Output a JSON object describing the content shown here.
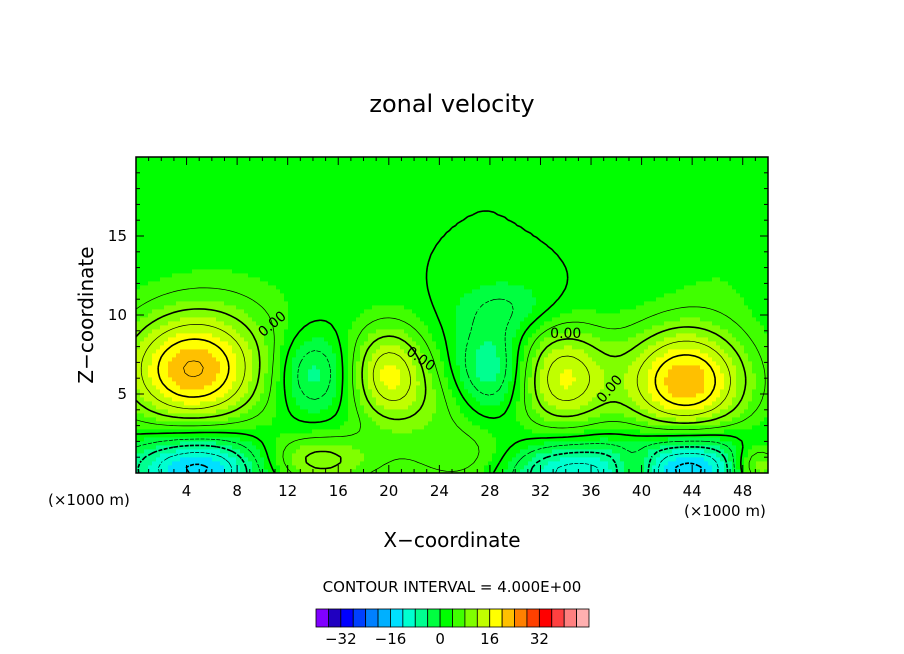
{
  "chart_data": {
    "type": "heatmap",
    "title": "zonal velocity",
    "xlabel": "X−coordinate",
    "ylabel": "Z−coordinate",
    "x_unit": "(×1000 m)",
    "x_unit_right": "(×1000 m)",
    "xlim": [
      0,
      50
    ],
    "ylim": [
      0,
      20
    ],
    "x_ticks": [
      4,
      8,
      12,
      16,
      20,
      24,
      28,
      32,
      36,
      40,
      44,
      48
    ],
    "y_ticks": [
      5,
      10,
      15
    ],
    "contour_interval_text": "CONTOUR INTERVAL = 4.000E+00",
    "contour_labels": [
      {
        "text": "0.00",
        "x": 10.8,
        "z": 9.4,
        "rot": -40
      },
      {
        "text": "0.00",
        "x": 22.5,
        "z": 7.2,
        "rot": 35
      },
      {
        "text": "0.00",
        "x": 34.0,
        "z": 8.8,
        "rot": 0
      },
      {
        "text": "0.00",
        "x": 37.5,
        "z": 5.3,
        "rot": -50
      }
    ],
    "features": [
      {
        "x": 4.5,
        "z": 6.5,
        "sx": 4.0,
        "sz": 2.6,
        "amp": 20
      },
      {
        "x": 20.0,
        "z": 6.3,
        "sx": 2.2,
        "sz": 2.2,
        "amp": 14
      },
      {
        "x": 33.8,
        "z": 6.0,
        "sx": 2.6,
        "sz": 2.4,
        "amp": 14
      },
      {
        "x": 43.5,
        "z": 5.8,
        "sx": 3.5,
        "sz": 2.5,
        "amp": 20
      },
      {
        "x": 14.0,
        "z": 6.3,
        "sx": 2.0,
        "sz": 1.8,
        "amp": -8
      },
      {
        "x": 28.0,
        "z": 6.5,
        "sx": 2.0,
        "sz": 2.0,
        "amp": -9
      },
      {
        "x": 29.5,
        "z": 10.5,
        "sx": 3.0,
        "sz": 1.3,
        "amp": -4
      },
      {
        "x": 5.0,
        "z": 0.4,
        "sx": 4.0,
        "sz": 1.5,
        "amp": -18
      },
      {
        "x": 34.0,
        "z": 0.2,
        "sx": 4.0,
        "sz": 1.4,
        "amp": -14
      },
      {
        "x": 44.0,
        "z": 0.4,
        "sx": 3.5,
        "sz": 1.5,
        "amp": -18
      },
      {
        "x": 14.0,
        "z": 0.8,
        "sx": 3.5,
        "sz": 1.2,
        "amp": 10
      },
      {
        "x": 27.0,
        "z": 0.8,
        "sx": 3.5,
        "sz": 1.4,
        "amp": 6
      },
      {
        "x": 39.5,
        "z": 0.3,
        "sx": 1.2,
        "sz": 0.9,
        "amp": 8
      },
      {
        "x": 49.0,
        "z": 0.4,
        "sx": 1.5,
        "sz": 1.0,
        "amp": 12
      },
      {
        "x": 8.0,
        "z": 10.5,
        "sx": 5.0,
        "sz": 2.5,
        "amp": 1.8
      },
      {
        "x": 46.5,
        "z": 12.5,
        "sx": 3.0,
        "sz": 2.0,
        "amp": 1.5
      },
      {
        "x": 24.0,
        "z": 4.0,
        "sx": 3.0,
        "sz": 2.0,
        "amp": 4
      }
    ],
    "colorbar": {
      "colors": [
        "#8000ff",
        "#2000c0",
        "#0000ff",
        "#0040ff",
        "#0080ff",
        "#00b0ff",
        "#00e0ff",
        "#00ffd0",
        "#00ff90",
        "#00ff40",
        "#00ff00",
        "#40ff00",
        "#80ff00",
        "#c0ff00",
        "#ffff00",
        "#ffc000",
        "#ff8000",
        "#ff4000",
        "#ff0000",
        "#ff4040",
        "#ff8080",
        "#ffb0b0"
      ],
      "tick_labels": [
        "−32",
        "−16",
        "0",
        "16",
        "32"
      ]
    }
  }
}
